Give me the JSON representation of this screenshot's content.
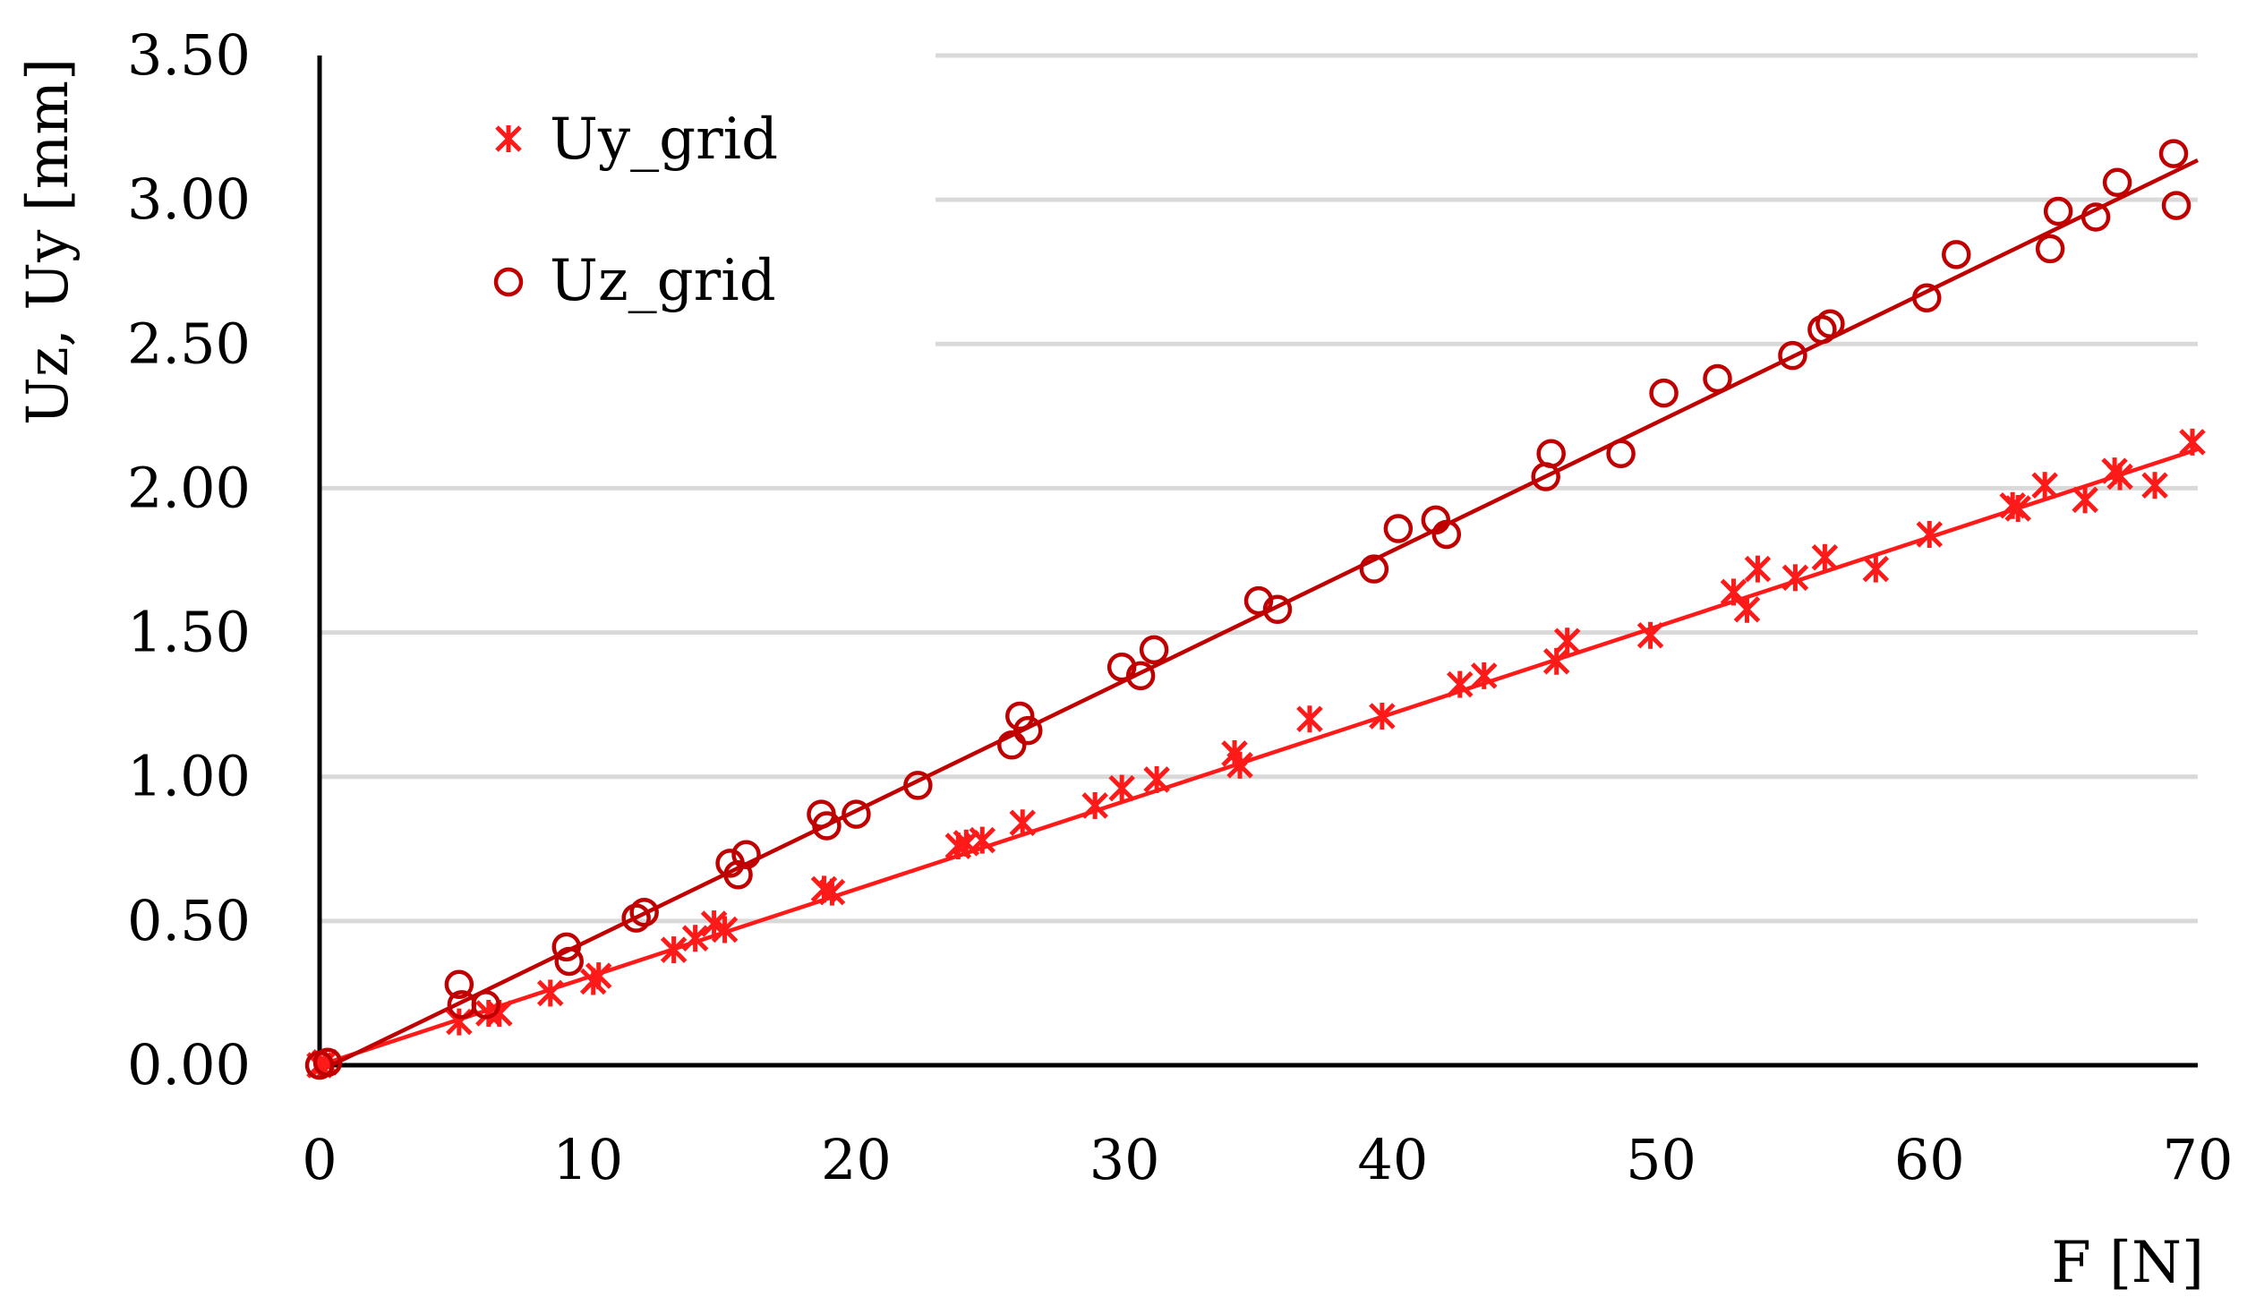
{
  "chart_data": {
    "type": "scatter",
    "title": "",
    "xlabel": "F [N]",
    "ylabel": "Uz, Uy [mm]",
    "xlim": [
      0,
      70
    ],
    "ylim": [
      0,
      3.5
    ],
    "x_ticks": [
      "0",
      "10",
      "20",
      "30",
      "40",
      "50",
      "60",
      "70"
    ],
    "y_ticks": [
      "0.00",
      "0.50",
      "1.00",
      "1.50",
      "2.00",
      "2.50",
      "3.00",
      "3.50"
    ],
    "grid": "horizontal",
    "legend_position": "top-left",
    "series": [
      {
        "name": "Uy_grid",
        "marker": "asterisk",
        "color": "#ff1a1a",
        "trendline": {
          "slope": 0.0305,
          "intercept": 0.0
        },
        "points": [
          [
            0.0,
            0.0
          ],
          [
            0.2,
            0.01
          ],
          [
            5.2,
            0.15
          ],
          [
            6.3,
            0.18
          ],
          [
            6.7,
            0.18
          ],
          [
            8.6,
            0.25
          ],
          [
            10.2,
            0.29
          ],
          [
            10.4,
            0.31
          ],
          [
            13.2,
            0.4
          ],
          [
            14.0,
            0.44
          ],
          [
            14.7,
            0.49
          ],
          [
            15.1,
            0.47
          ],
          [
            18.8,
            0.61
          ],
          [
            19.1,
            0.6
          ],
          [
            23.8,
            0.76
          ],
          [
            24.1,
            0.77
          ],
          [
            24.7,
            0.78
          ],
          [
            26.2,
            0.84
          ],
          [
            28.9,
            0.9
          ],
          [
            29.9,
            0.96
          ],
          [
            31.2,
            0.99
          ],
          [
            34.1,
            1.08
          ],
          [
            34.3,
            1.04
          ],
          [
            36.9,
            1.2
          ],
          [
            39.6,
            1.21
          ],
          [
            42.5,
            1.32
          ],
          [
            43.4,
            1.35
          ],
          [
            46.1,
            1.4
          ],
          [
            46.5,
            1.47
          ],
          [
            49.6,
            1.49
          ],
          [
            52.7,
            1.64
          ],
          [
            53.2,
            1.58
          ],
          [
            53.6,
            1.72
          ],
          [
            55.0,
            1.69
          ],
          [
            56.1,
            1.76
          ],
          [
            58.0,
            1.72
          ],
          [
            60.0,
            1.84
          ],
          [
            63.1,
            1.94
          ],
          [
            63.3,
            1.93
          ],
          [
            64.3,
            2.01
          ],
          [
            65.8,
            1.96
          ],
          [
            66.9,
            2.06
          ],
          [
            67.1,
            2.04
          ],
          [
            68.4,
            2.01
          ],
          [
            69.8,
            2.16
          ]
        ]
      },
      {
        "name": "Uz_grid",
        "marker": "circle",
        "color": "#c00000",
        "trendline": {
          "slope": 0.0451,
          "intercept": -0.02
        },
        "points": [
          [
            0.0,
            0.0
          ],
          [
            0.3,
            0.01
          ],
          [
            5.2,
            0.28
          ],
          [
            5.3,
            0.21
          ],
          [
            6.2,
            0.21
          ],
          [
            9.2,
            0.41
          ],
          [
            9.3,
            0.36
          ],
          [
            11.8,
            0.51
          ],
          [
            12.1,
            0.53
          ],
          [
            15.3,
            0.7
          ],
          [
            15.6,
            0.66
          ],
          [
            15.9,
            0.73
          ],
          [
            18.7,
            0.87
          ],
          [
            18.9,
            0.83
          ],
          [
            20.0,
            0.87
          ],
          [
            22.3,
            0.97
          ],
          [
            25.8,
            1.11
          ],
          [
            26.1,
            1.21
          ],
          [
            26.4,
            1.16
          ],
          [
            29.9,
            1.38
          ],
          [
            30.6,
            1.35
          ],
          [
            31.1,
            1.44
          ],
          [
            35.0,
            1.61
          ],
          [
            35.7,
            1.58
          ],
          [
            39.3,
            1.72
          ],
          [
            40.2,
            1.86
          ],
          [
            41.6,
            1.89
          ],
          [
            42.0,
            1.84
          ],
          [
            45.7,
            2.04
          ],
          [
            45.9,
            2.12
          ],
          [
            48.5,
            2.12
          ],
          [
            50.1,
            2.33
          ],
          [
            52.1,
            2.38
          ],
          [
            54.9,
            2.46
          ],
          [
            56.0,
            2.55
          ],
          [
            56.3,
            2.57
          ],
          [
            59.9,
            2.66
          ],
          [
            61.0,
            2.81
          ],
          [
            64.5,
            2.83
          ],
          [
            64.8,
            2.96
          ],
          [
            66.2,
            2.94
          ],
          [
            67.0,
            3.06
          ],
          [
            69.1,
            3.16
          ],
          [
            69.2,
            2.98
          ]
        ]
      }
    ]
  }
}
